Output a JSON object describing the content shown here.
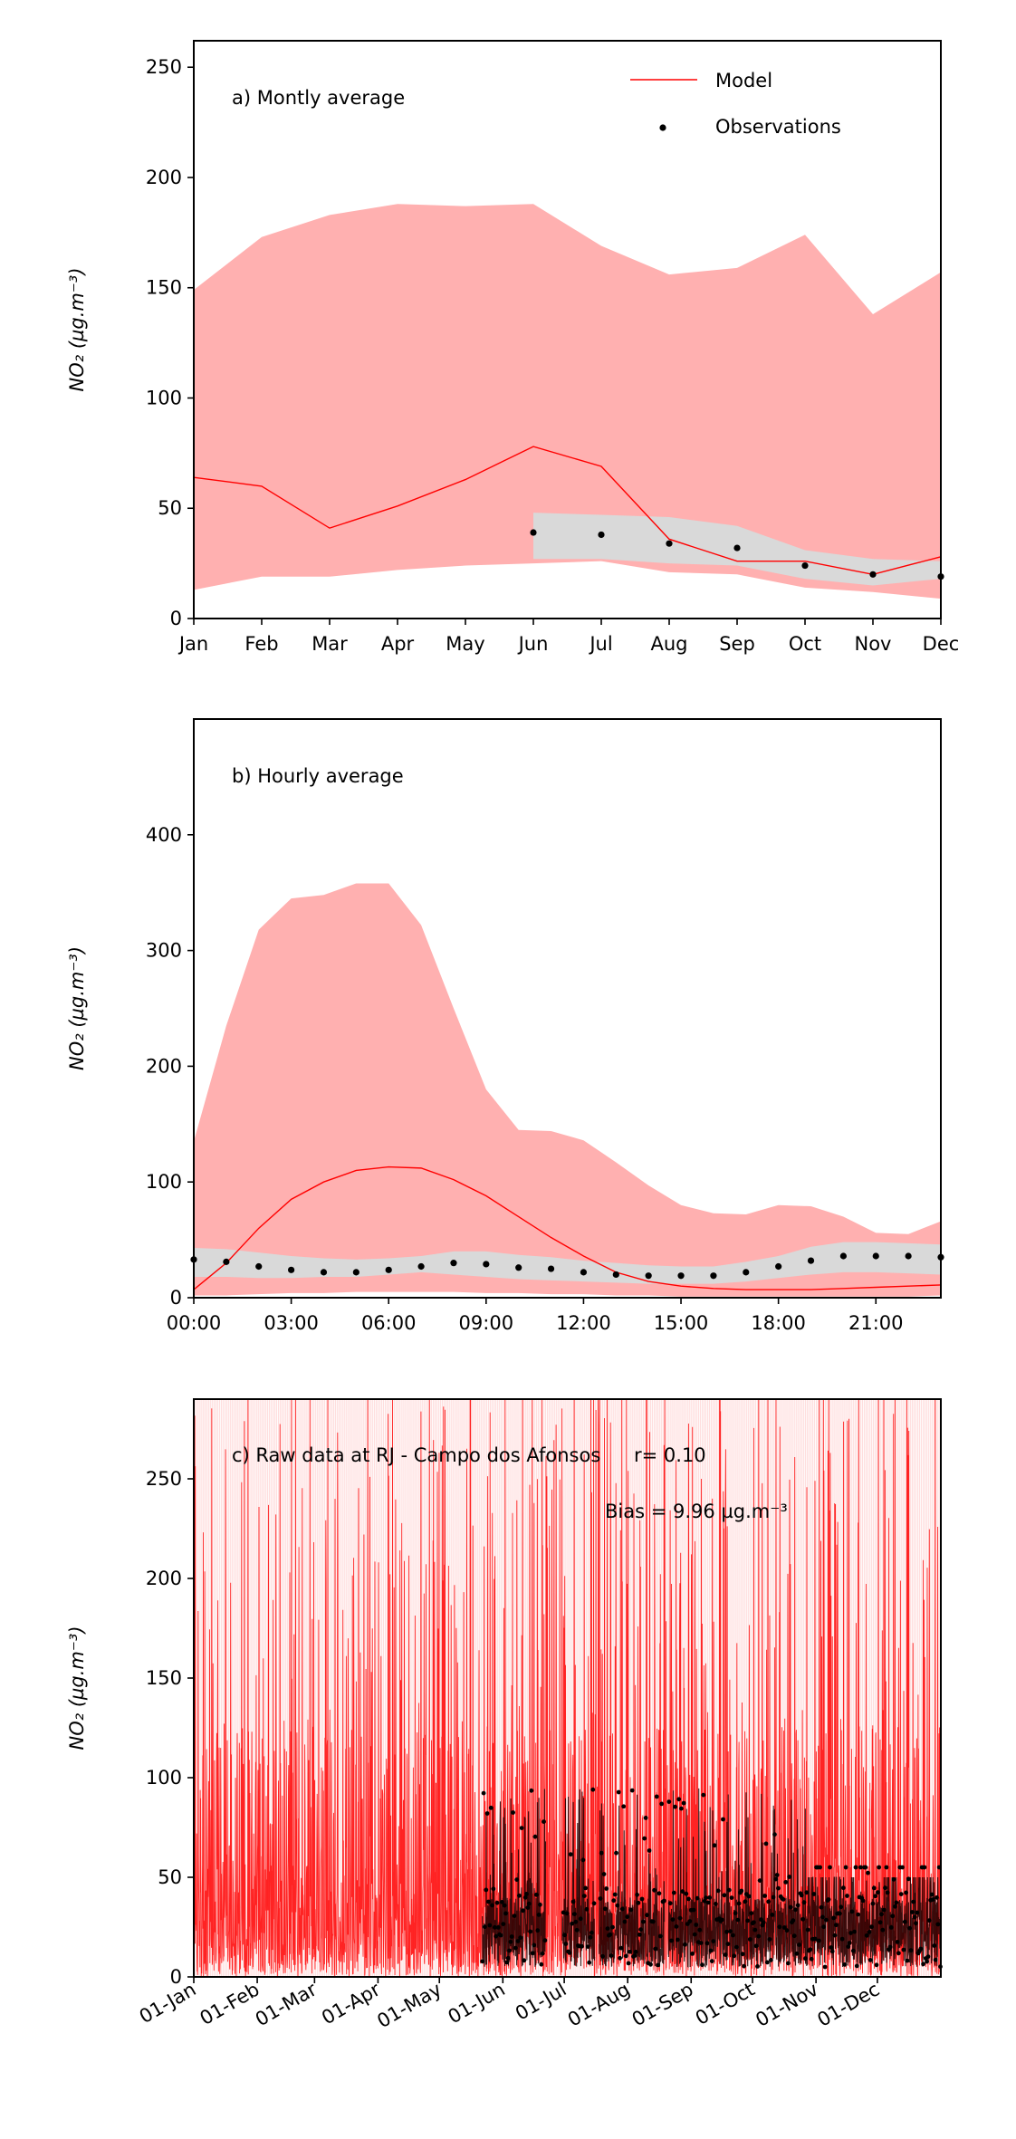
{
  "figure": {
    "ylabel": "NO₂ (µg.m⁻³)"
  },
  "chart_data": [
    {
      "type": "area",
      "panel_label": "a) Montly average",
      "xlabel": "",
      "ylabel": "NO₂ (µg.m⁻³)",
      "categories": [
        "Jan",
        "Feb",
        "Mar",
        "Apr",
        "May",
        "Jun",
        "Jul",
        "Aug",
        "Sep",
        "Oct",
        "Nov",
        "Dec"
      ],
      "ylim": [
        0,
        262
      ],
      "yticks": [
        0,
        50,
        100,
        150,
        200,
        250
      ],
      "legend": {
        "placement": "top-right",
        "entries": [
          {
            "label": "Model",
            "style": "line"
          },
          {
            "label": "Observations",
            "style": "marker"
          }
        ]
      },
      "series": [
        {
          "name": "Model",
          "kind": "line",
          "color": "#ff0000",
          "values": [
            64,
            60,
            41,
            51,
            63,
            78,
            69,
            36,
            26,
            26,
            20,
            28
          ]
        },
        {
          "name": "",
          "kind": "band",
          "color": "#ffb0b0",
          "lower": [
            13,
            19,
            19,
            22,
            24,
            25,
            26,
            21,
            20,
            14,
            12,
            9
          ],
          "upper": [
            149,
            173,
            183,
            188,
            187,
            188,
            169,
            156,
            159,
            174,
            138,
            157
          ]
        },
        {
          "name": "Observations",
          "kind": "points",
          "color": "#000000",
          "values": [
            null,
            null,
            null,
            null,
            null,
            39,
            38,
            34,
            32,
            24,
            20,
            19
          ]
        },
        {
          "name": "",
          "kind": "band",
          "color": "#d9d9d9",
          "start_index": 5,
          "lower": [
            27,
            27,
            25,
            24,
            18,
            15,
            18
          ],
          "upper": [
            48,
            47,
            46,
            42,
            31,
            27,
            26
          ]
        }
      ]
    },
    {
      "type": "area",
      "panel_label": "b) Hourly average",
      "xlabel": "",
      "ylabel": "NO₂ (µg.m⁻³)",
      "x": [
        0,
        1,
        2,
        3,
        4,
        5,
        6,
        7,
        8,
        9,
        10,
        11,
        12,
        13,
        14,
        15,
        16,
        17,
        18,
        19,
        20,
        21,
        22,
        23
      ],
      "xticks": [
        0,
        3,
        6,
        9,
        12,
        15,
        18,
        21
      ],
      "xticklabels": [
        "00:00",
        "03:00",
        "06:00",
        "09:00",
        "12:00",
        "15:00",
        "18:00",
        "21:00"
      ],
      "ylim": [
        0,
        500
      ],
      "yticks": [
        0,
        100,
        200,
        300,
        400
      ],
      "series": [
        {
          "name": "Model",
          "kind": "line",
          "color": "#ff0000",
          "values": [
            7,
            30,
            60,
            85,
            100,
            110,
            113,
            112,
            102,
            88,
            70,
            52,
            36,
            22,
            14,
            10,
            8,
            7,
            7,
            7,
            8,
            9,
            10,
            11
          ]
        },
        {
          "name": "",
          "kind": "band",
          "color": "#ffb0b0",
          "lower": [
            2,
            2,
            3,
            4,
            4,
            5,
            5,
            5,
            5,
            4,
            4,
            3,
            3,
            2,
            2,
            1,
            1,
            1,
            1,
            1,
            1,
            1,
            1,
            2
          ],
          "upper": [
            135,
            235,
            318,
            345,
            348,
            358,
            358,
            322,
            250,
            180,
            145,
            144,
            136,
            117,
            97,
            80,
            73,
            72,
            80,
            79,
            70,
            56,
            55,
            66
          ]
        },
        {
          "name": "Observations",
          "kind": "points",
          "color": "#000000",
          "values": [
            33,
            31,
            27,
            24,
            22,
            22,
            24,
            27,
            30,
            29,
            26,
            25,
            22,
            20,
            19,
            19,
            19,
            22,
            27,
            32,
            36,
            36,
            36,
            35
          ]
        },
        {
          "name": "",
          "kind": "band",
          "color": "#d9d9d9",
          "lower": [
            18,
            18,
            17,
            17,
            18,
            18,
            20,
            22,
            20,
            18,
            16,
            15,
            14,
            13,
            12,
            12,
            12,
            14,
            17,
            20,
            22,
            22,
            21,
            20
          ],
          "upper": [
            43,
            42,
            39,
            36,
            34,
            33,
            34,
            36,
            40,
            40,
            37,
            35,
            32,
            30,
            28,
            27,
            27,
            31,
            36,
            44,
            48,
            48,
            47,
            46
          ]
        }
      ]
    },
    {
      "type": "line",
      "panel_label": "c) Raw data at RJ - Campo dos Afonsos",
      "annotations": [
        "r= 0.10",
        "Bias = 9.96 µg.m⁻³"
      ],
      "xlabel": "",
      "ylabel": "NO₂ (µg.m⁻³)",
      "x_range": [
        "01-Jan",
        "31-Dec"
      ],
      "xtick_positions_day": [
        0,
        31,
        59,
        90,
        120,
        151,
        181,
        212,
        243,
        273,
        304,
        334
      ],
      "xticklabels": [
        "01-Jan",
        "01-Feb",
        "01-Mar",
        "01-Apr",
        "01-May",
        "01-Jun",
        "01-Jul",
        "01-Aug",
        "01-Sep",
        "01-Oct",
        "01-Nov",
        "01-Dec"
      ],
      "ylim": [
        0,
        290
      ],
      "yticks": [
        0,
        50,
        100,
        150,
        200,
        250
      ],
      "model_color": "#ff0000",
      "observation_color": "#000000",
      "observations_start": "01-Jun",
      "series": [
        {
          "name": "Model",
          "kind": "hourly-line",
          "values_range": [
            0,
            290
          ]
        },
        {
          "name": "Observations",
          "kind": "hourly-points",
          "values_range": [
            0,
            95
          ]
        }
      ]
    }
  ]
}
